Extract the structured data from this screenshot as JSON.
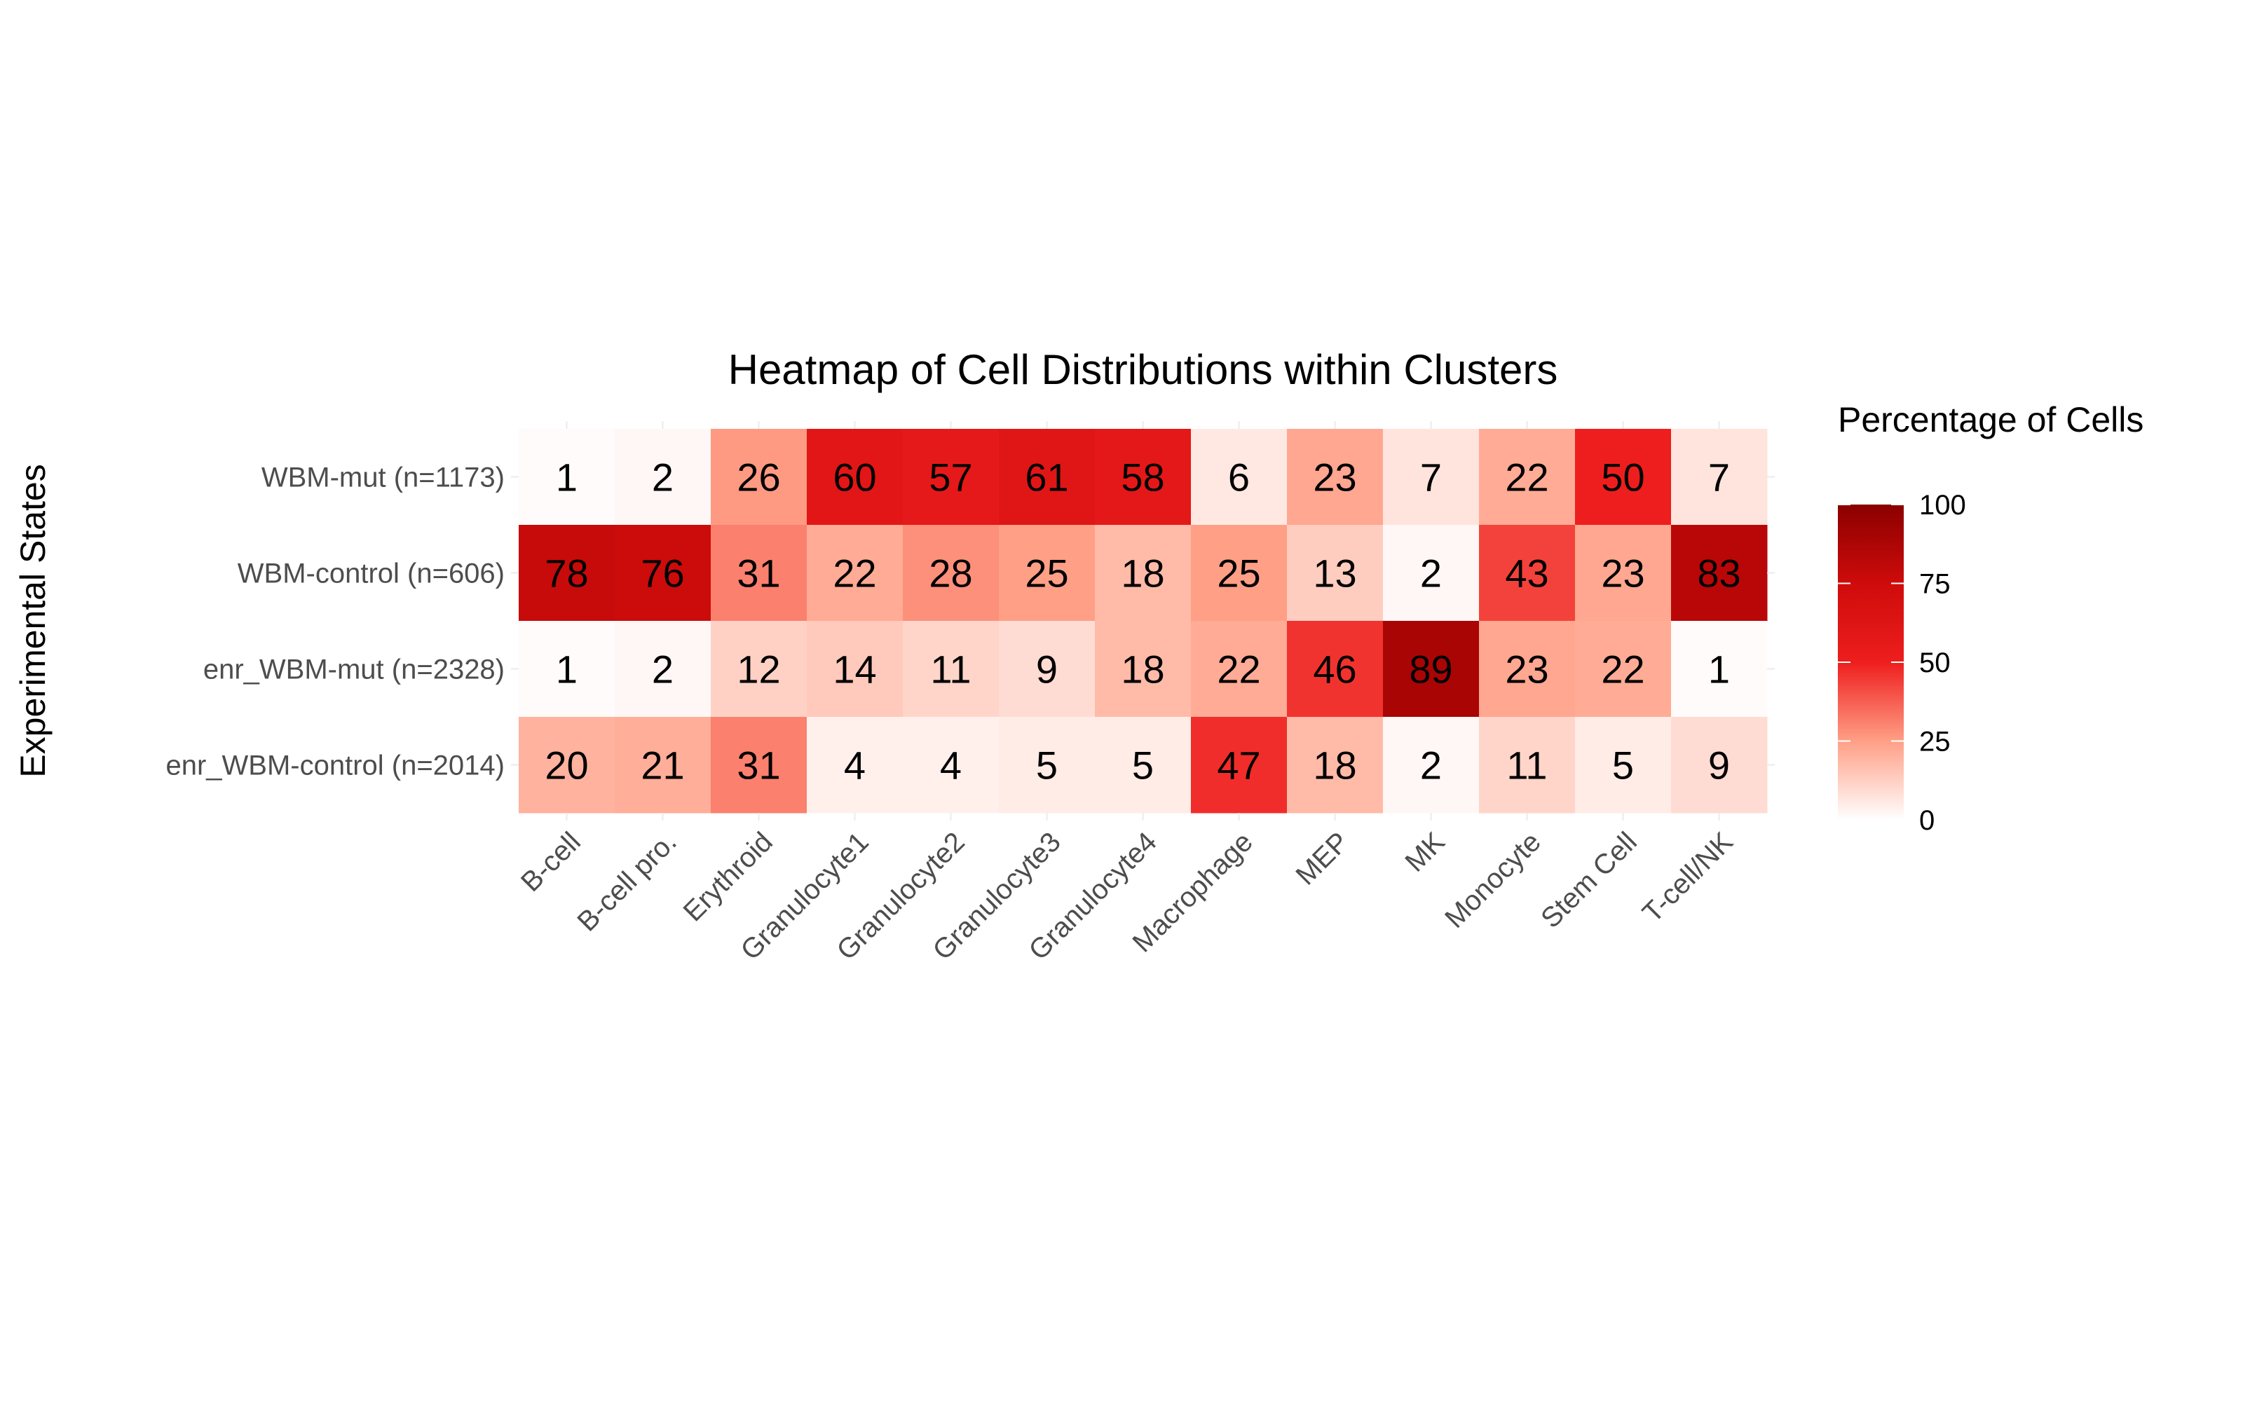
{
  "chart_data": {
    "type": "heatmap",
    "title": "Heatmap of Cell Distributions within Clusters",
    "xlabel": "",
    "ylabel": "Experimental States",
    "x_categories": [
      "B-cell",
      "B-cell pro.",
      "Erythroid",
      "Granulocyte1",
      "Granulocyte2",
      "Granulocyte3",
      "Granulocyte4",
      "Macrophage",
      "MEP",
      "MK",
      "Monocyte",
      "Stem Cell",
      "T-cell/NK"
    ],
    "y_categories": [
      "WBM-mut (n=1173)",
      "WBM-control (n=606)",
      "enr_WBM-mut (n=2328)",
      "enr_WBM-control (n=2014)"
    ],
    "values": [
      [
        1,
        2,
        26,
        60,
        57,
        61,
        58,
        6,
        23,
        7,
        22,
        50,
        7
      ],
      [
        78,
        76,
        31,
        22,
        28,
        25,
        18,
        25,
        13,
        2,
        43,
        23,
        83
      ],
      [
        1,
        2,
        12,
        14,
        11,
        9,
        18,
        22,
        46,
        89,
        23,
        22,
        1
      ],
      [
        20,
        21,
        31,
        4,
        4,
        5,
        5,
        47,
        18,
        2,
        11,
        5,
        9
      ]
    ],
    "legend": {
      "title": "Percentage of Cells",
      "range": [
        0,
        100
      ],
      "ticks": [
        0,
        25,
        50,
        75,
        100
      ],
      "position": "right"
    },
    "color_scale": {
      "stops": [
        {
          "value": 0,
          "color": "#ffffff"
        },
        {
          "value": 25,
          "color": "#ff9f86"
        },
        {
          "value": 50,
          "color": "#ee1e1e"
        },
        {
          "value": 75,
          "color": "#cf0b0b"
        },
        {
          "value": 100,
          "color": "#8b0000"
        }
      ]
    },
    "grid": true
  }
}
